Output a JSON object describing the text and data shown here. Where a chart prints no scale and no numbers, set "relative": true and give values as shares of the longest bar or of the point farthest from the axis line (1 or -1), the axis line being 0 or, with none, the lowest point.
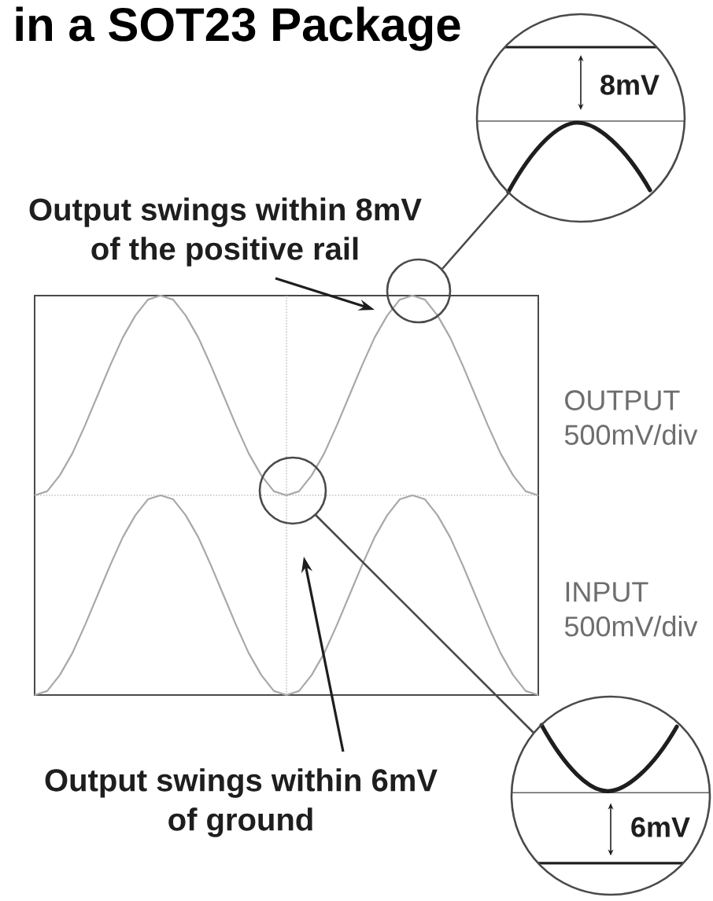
{
  "chart_data": {
    "type": "line",
    "title": "in a SOT23 Package",
    "relative": true,
    "categories": [
      null,
      null,
      null,
      null,
      null,
      null,
      null,
      null,
      null,
      null,
      null,
      null,
      null,
      null,
      null,
      null,
      null,
      null,
      null,
      null,
      null,
      null,
      null,
      null,
      null,
      null,
      null,
      null,
      null,
      null,
      null,
      null,
      null,
      null,
      null,
      null,
      null,
      null,
      null,
      null,
      null
    ],
    "series": [
      {
        "name": "OUTPUT 500mV/div",
        "color": "#a8a8a8",
        "values": [
          0,
          0.02,
          0.1,
          0.21,
          0.35,
          0.5,
          0.65,
          0.79,
          0.9,
          0.98,
          1,
          0.98,
          0.9,
          0.79,
          0.65,
          0.5,
          0.35,
          0.21,
          0.1,
          0.02,
          0,
          0.02,
          0.1,
          0.21,
          0.35,
          0.5,
          0.65,
          0.79,
          0.9,
          0.98,
          1,
          0.98,
          0.9,
          0.79,
          0.65,
          0.5,
          0.35,
          0.21,
          0.1,
          0.02,
          0
        ]
      },
      {
        "name": "INPUT 500mV/div",
        "color": "#a8a8a8",
        "values": [
          -1,
          -0.98,
          -0.9,
          -0.79,
          -0.65,
          -0.5,
          -0.35,
          -0.21,
          -0.1,
          -0.02,
          0,
          -0.02,
          -0.1,
          -0.21,
          -0.35,
          -0.5,
          -0.65,
          -0.79,
          -0.9,
          -0.98,
          -1,
          -0.98,
          -0.9,
          -0.79,
          -0.65,
          -0.5,
          -0.35,
          -0.21,
          -0.1,
          -0.02,
          0,
          -0.02,
          -0.1,
          -0.21,
          -0.35,
          -0.5,
          -0.65,
          -0.79,
          -0.9,
          -0.98,
          -1
        ]
      }
    ],
    "ref_lines": [
      {
        "axis": "y",
        "value": 0,
        "color": "#c4c4c4",
        "line_style": "dotted"
      }
    ],
    "annotations": [
      "Output swings within 8mV of the positive rail",
      "Output swings within 6mV of ground",
      "8mV",
      "6mV"
    ]
  }
}
